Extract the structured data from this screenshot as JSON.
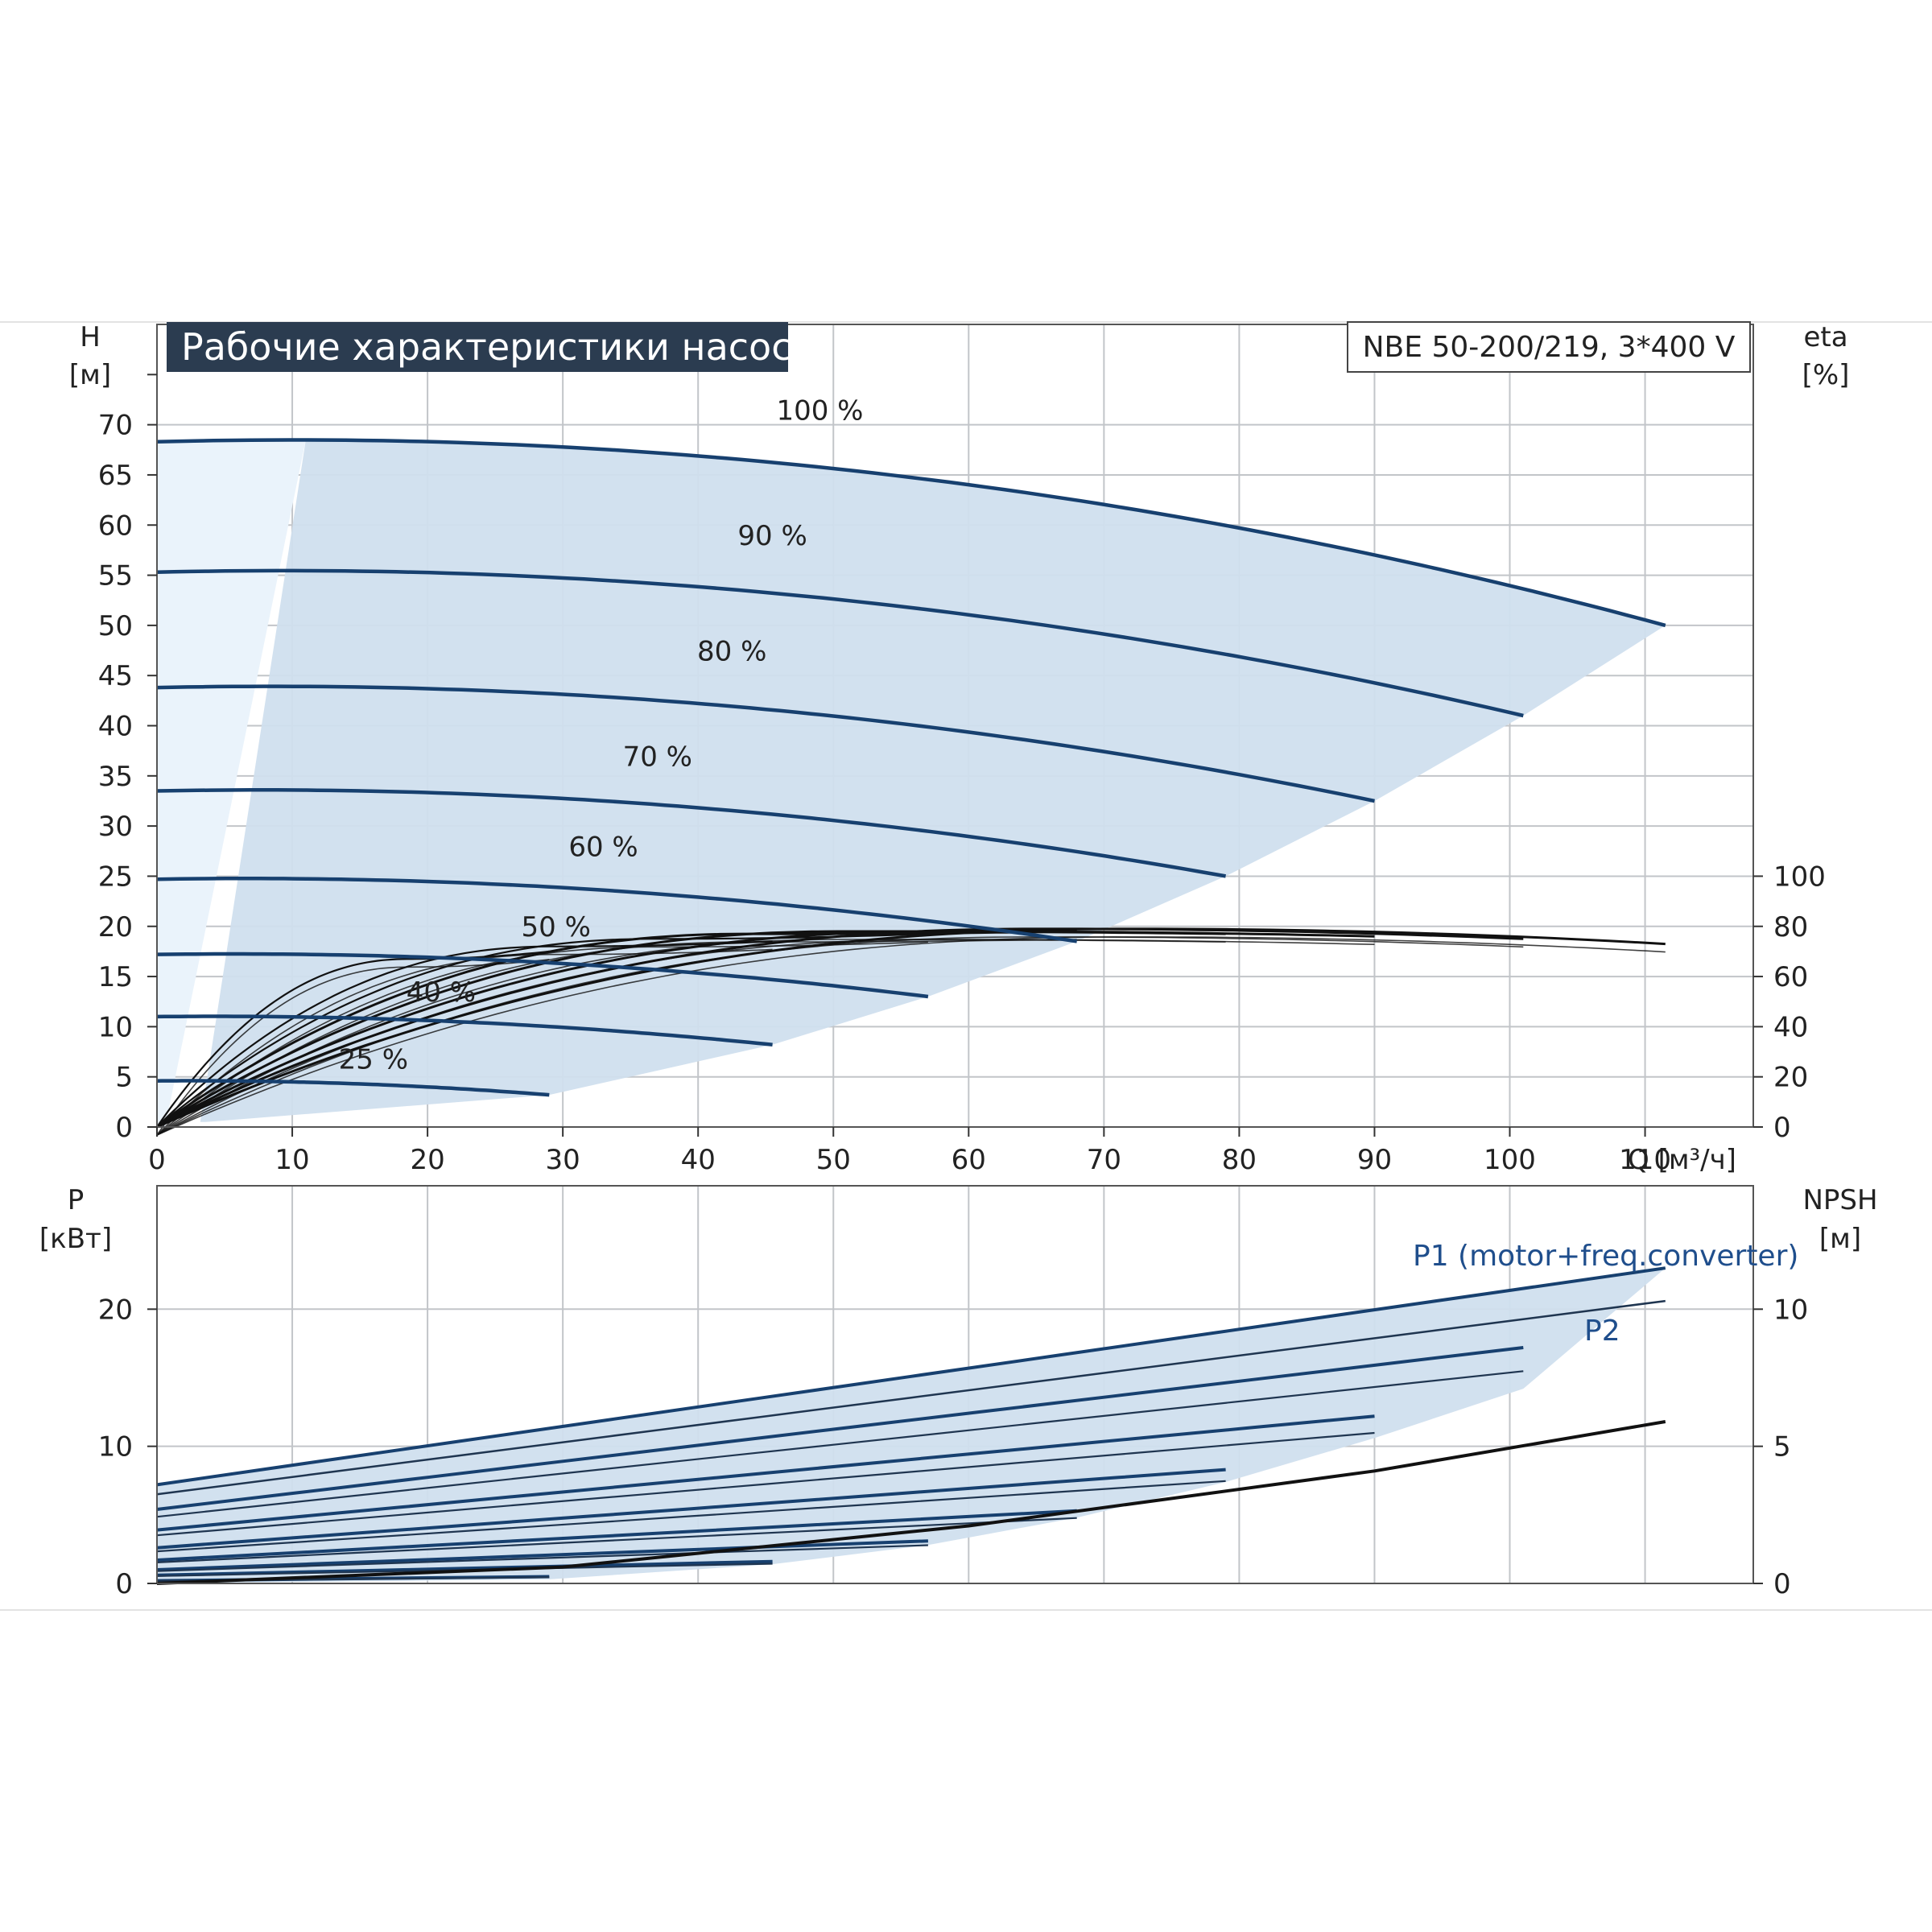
{
  "page": {
    "title": "Рабочие характеристики насоса",
    "model": "NBE 50-200/219, 3*400 V"
  },
  "chart_data": [
    {
      "type": "line",
      "x_label": "Q [м³/ч]",
      "y_label": "H",
      "y_unit": "[м]",
      "y2_label": "eta",
      "y2_unit": "[%]",
      "xlim": [
        0,
        118
      ],
      "ylim": [
        0,
        80
      ],
      "x_ticks": [
        0,
        10,
        20,
        30,
        40,
        50,
        60,
        70,
        80,
        90,
        100,
        110
      ],
      "x_tick_labels": [
        "0",
        "10",
        "20",
        "30",
        "40",
        "50",
        "60",
        "70",
        "80",
        "90",
        "100",
        "110"
      ],
      "y_ticks": [
        0,
        5,
        10,
        15,
        20,
        25,
        30,
        35,
        40,
        45,
        50,
        55,
        60,
        65,
        70
      ],
      "y2_ticks": [
        0,
        20,
        40,
        60,
        80,
        100
      ],
      "grid": true,
      "series": [
        {
          "name": "100 %",
          "q_max": 111.5,
          "h0": 68.3,
          "h_end": 50.0
        },
        {
          "name": "90 %",
          "q_max": 101.0,
          "h0": 55.3,
          "h_end": 41.0
        },
        {
          "name": "80 %",
          "q_max": 90.0,
          "h0": 43.8,
          "h_end": 32.5
        },
        {
          "name": "70 %",
          "q_max": 79.0,
          "h0": 33.5,
          "h_end": 25.0
        },
        {
          "name": "60 %",
          "q_max": 68.0,
          "h0": 24.7,
          "h_end": 18.5
        },
        {
          "name": "50 %",
          "q_max": 57.0,
          "h0": 17.2,
          "h_end": 13.0
        },
        {
          "name": "40 %",
          "q_max": 45.5,
          "h0": 11.0,
          "h_end": 8.2
        },
        {
          "name": "25 %",
          "q_max": 29.0,
          "h0": 4.6,
          "h_end": 3.2
        }
      ],
      "efficiency_end_pct": [
        73,
        75,
        76,
        77,
        78,
        77,
        74,
        70
      ],
      "efficiency_peak_pct": [
        79,
        79,
        78,
        78,
        77,
        75,
        72,
        67
      ]
    },
    {
      "type": "line",
      "x_label": "Q [м³/ч]",
      "y_label": "P",
      "y_unit": "[кВт]",
      "y2_label": "NPSH",
      "y2_unit": "[м]",
      "xlim": [
        0,
        118
      ],
      "ylim": [
        0,
        29
      ],
      "y_ticks": [
        0,
        10,
        20
      ],
      "y2_ticks": [
        0,
        5,
        10
      ],
      "y2_scale_max": 14.5,
      "grid": true,
      "series": [
        {
          "name": "P1 (motor+freq.converter)",
          "q_max": 111.5,
          "p_start": 7.2,
          "p_end": 23.0
        },
        {
          "name": "P2",
          "q_max": 111.5,
          "p_start": 6.5,
          "p_end": 20.6
        }
      ],
      "speed_p1_ranges": [
        {
          "q_max": 101.0,
          "p_start": 5.4,
          "p_end": 17.2
        },
        {
          "q_max": 90.0,
          "p_start": 3.9,
          "p_end": 12.2
        },
        {
          "q_max": 79.0,
          "p_start": 2.6,
          "p_end": 8.3
        },
        {
          "q_max": 68.0,
          "p_start": 1.7,
          "p_end": 5.3
        },
        {
          "q_max": 57.0,
          "p_start": 1.0,
          "p_end": 3.1
        },
        {
          "q_max": 45.5,
          "p_start": 0.6,
          "p_end": 1.6
        },
        {
          "q_max": 29.0,
          "p_start": 0.2,
          "p_end": 0.5
        }
      ],
      "npsh": {
        "q_max": 111.5,
        "values_at_q": [
          [
            0,
            0
          ],
          [
            30,
            0.6
          ],
          [
            60,
            2.1
          ],
          [
            90,
            4.1
          ],
          [
            111.5,
            5.9
          ]
        ]
      }
    }
  ]
}
